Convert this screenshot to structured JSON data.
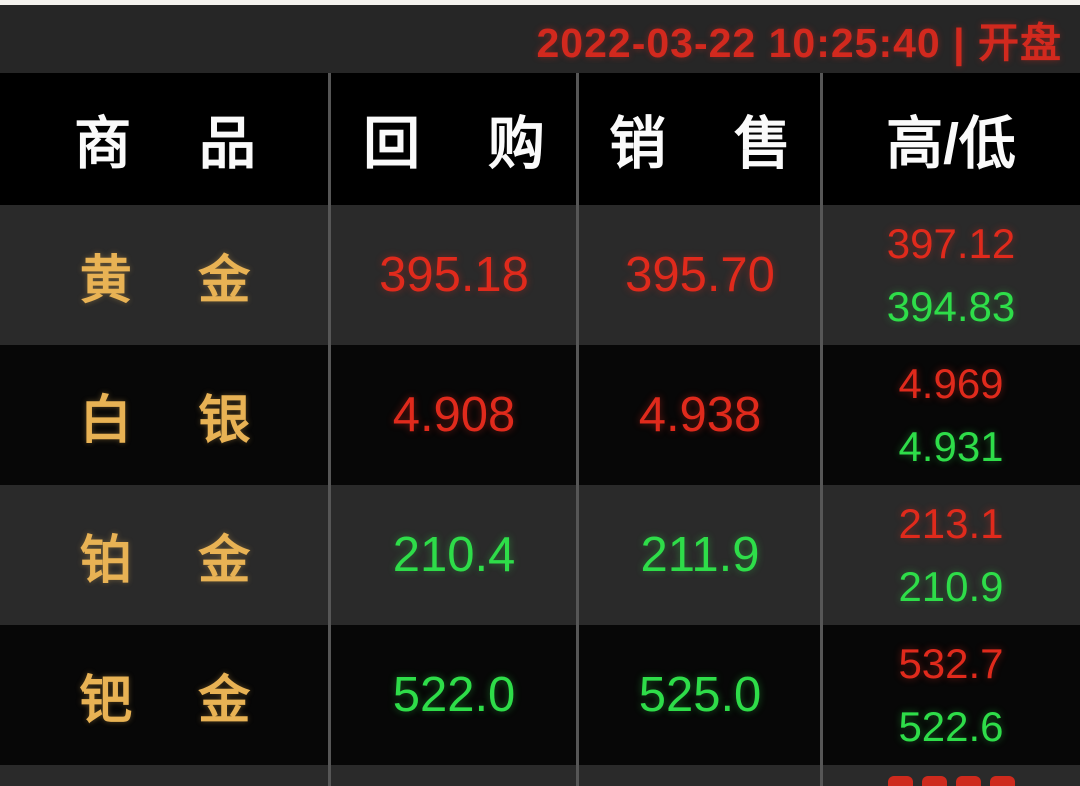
{
  "status_bar": {
    "text": "2022-03-22 10:25:40 | 开盘",
    "date": "2022-03-22",
    "time": "10:25:40",
    "divider": "|",
    "session_label": "开盘"
  },
  "table": {
    "columns": [
      "商 品",
      "回 购",
      "销 售",
      "高/低"
    ],
    "rows": [
      {
        "commodity": "黄 金",
        "buyback": "395.18",
        "buyback_color": "red",
        "sell": "395.70",
        "sell_color": "red",
        "high": "397.12",
        "high_color": "red",
        "low": "394.83",
        "low_color": "green"
      },
      {
        "commodity": "白 银",
        "buyback": "4.908",
        "buyback_color": "red",
        "sell": "4.938",
        "sell_color": "red",
        "high": "4.969",
        "high_color": "red",
        "low": "4.931",
        "low_color": "green"
      },
      {
        "commodity": "铂 金",
        "buyback": "210.4",
        "buyback_color": "green",
        "sell": "211.9",
        "sell_color": "green",
        "high": "213.1",
        "high_color": "red",
        "low": "210.9",
        "low_color": "green"
      },
      {
        "commodity": "钯 金",
        "buyback": "522.0",
        "buyback_color": "green",
        "sell": "525.0",
        "sell_color": "green",
        "high": "532.7",
        "high_color": "red",
        "low": "522.6",
        "low_color": "green"
      }
    ],
    "partial_next_row_visible": true
  },
  "colors": {
    "red": "#e02a1c",
    "green": "#2edd49",
    "gold": "#e8b254",
    "header_text": "#fafafa",
    "bar_bg": "#262626",
    "row_dark": "#2a2a2a",
    "row_black": "#070707",
    "separator": "#565656",
    "top_strip": "#f4f2ee",
    "date_red": "#d2291e"
  }
}
